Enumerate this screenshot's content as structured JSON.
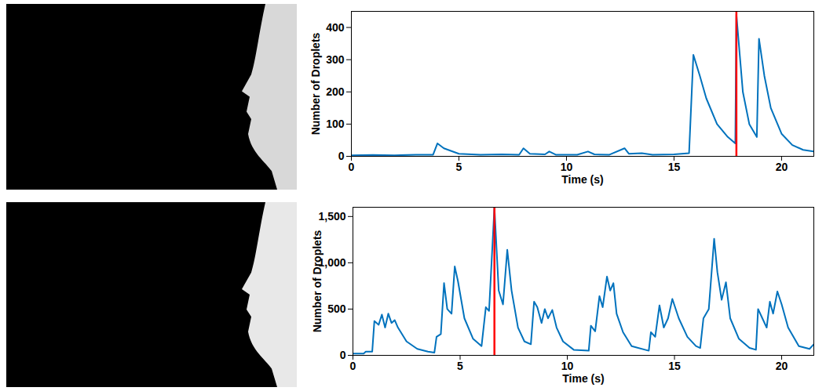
{
  "chart_data": [
    {
      "type": "line",
      "x_label": "Time (s)",
      "y_label": "Number of Droplets",
      "xlim": [
        0,
        21.5
      ],
      "xticks": [
        0,
        5,
        10,
        15,
        20
      ],
      "ylim": [
        0,
        450
      ],
      "yticks": [
        0,
        100,
        200,
        300,
        400
      ],
      "grid": false,
      "vline": {
        "x": 17.9,
        "color": "#ff0000"
      },
      "x": [
        0,
        1,
        2,
        3,
        3.8,
        4.0,
        4.3,
        5,
        6,
        7,
        7.8,
        8.0,
        8.3,
        9.0,
        9.2,
        9.5,
        10.5,
        11.0,
        11.3,
        12.0,
        12.7,
        12.9,
        13.5,
        14,
        15,
        15.7,
        15.9,
        16.2,
        16.5,
        17.0,
        17.5,
        17.85,
        17.9,
        18.2,
        18.5,
        18.85,
        18.95,
        19.2,
        19.5,
        20.0,
        20.5,
        21.0,
        21.5
      ],
      "series": [
        {
          "color": "#0072bd",
          "values": [
            3,
            4,
            3,
            5,
            5,
            40,
            25,
            8,
            5,
            6,
            5,
            25,
            8,
            6,
            15,
            5,
            5,
            15,
            6,
            5,
            25,
            8,
            10,
            5,
            6,
            10,
            315,
            250,
            180,
            100,
            60,
            40,
            440,
            200,
            100,
            60,
            365,
            250,
            150,
            70,
            35,
            20,
            15
          ]
        }
      ]
    },
    {
      "type": "line",
      "x_label": "Time (s)",
      "y_label": "Number of Droplets",
      "xlim": [
        0,
        21.5
      ],
      "xticks": [
        0,
        5,
        10,
        15,
        20
      ],
      "ylim": [
        0,
        1600
      ],
      "yticks": [
        0,
        500,
        1000,
        1500
      ],
      "grid": false,
      "vline": {
        "x": 6.6,
        "color": "#ff0000"
      },
      "x": [
        0,
        0.5,
        0.6,
        0.9,
        1.0,
        1.2,
        1.35,
        1.5,
        1.65,
        1.8,
        1.95,
        2.1,
        2.5,
        3.0,
        3.5,
        3.8,
        3.9,
        4.1,
        4.25,
        4.4,
        4.6,
        4.75,
        4.9,
        5.2,
        5.6,
        6.0,
        6.2,
        6.35,
        6.6,
        6.8,
        7.0,
        7.2,
        7.4,
        7.7,
        8.0,
        8.3,
        8.45,
        8.6,
        8.8,
        8.95,
        9.1,
        9.3,
        9.5,
        9.8,
        10.3,
        11.0,
        11.1,
        11.3,
        11.5,
        11.65,
        11.85,
        12.0,
        12.15,
        12.3,
        12.6,
        13.0,
        13.8,
        13.9,
        14.1,
        14.3,
        14.5,
        14.7,
        14.9,
        15.2,
        15.6,
        16.0,
        16.2,
        16.35,
        16.6,
        16.85,
        17.0,
        17.2,
        17.4,
        17.6,
        18.0,
        18.5,
        18.8,
        18.9,
        19.1,
        19.3,
        19.45,
        19.6,
        19.8,
        20.0,
        20.3,
        20.8,
        21.3,
        21.5
      ],
      "series": [
        {
          "color": "#0072bd",
          "values": [
            20,
            20,
            40,
            40,
            370,
            330,
            440,
            300,
            450,
            350,
            380,
            300,
            150,
            70,
            40,
            30,
            200,
            230,
            780,
            500,
            450,
            960,
            800,
            400,
            180,
            100,
            520,
            480,
            1600,
            700,
            550,
            1140,
            700,
            300,
            150,
            120,
            580,
            520,
            350,
            500,
            400,
            490,
            300,
            150,
            60,
            50,
            320,
            260,
            640,
            520,
            850,
            700,
            780,
            450,
            250,
            100,
            50,
            250,
            200,
            540,
            300,
            400,
            610,
            400,
            200,
            100,
            80,
            400,
            500,
            1260,
            900,
            600,
            790,
            400,
            180,
            80,
            60,
            500,
            400,
            300,
            580,
            450,
            690,
            550,
            300,
            100,
            70,
            120
          ]
        }
      ]
    }
  ]
}
